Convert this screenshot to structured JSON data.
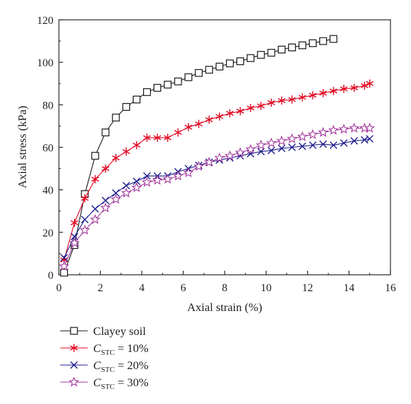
{
  "chart_data": {
    "type": "line",
    "xlabel": "Axial strain (%)",
    "ylabel": "Axial stress (kPa)",
    "xlim": [
      0,
      16
    ],
    "ylim": [
      0,
      120
    ],
    "xticks": [
      0,
      2,
      4,
      6,
      8,
      10,
      12,
      14,
      16
    ],
    "yticks": [
      0,
      20,
      40,
      60,
      80,
      100,
      120
    ],
    "grid": false,
    "legend_position": "below-left",
    "series": [
      {
        "name": "Clayey soil",
        "legend_main": "Clayey soil",
        "legend_sub": "",
        "legend_tail": "",
        "color": "#111111",
        "marker": "square",
        "x": [
          0.25,
          0.75,
          1.25,
          1.75,
          2.25,
          2.75,
          3.25,
          3.75,
          4.25,
          4.75,
          5.25,
          5.75,
          6.25,
          6.75,
          7.25,
          7.75,
          8.25,
          8.75,
          9.25,
          9.75,
          10.25,
          10.75,
          11.25,
          11.75,
          12.25,
          12.75,
          13.25
        ],
        "y": [
          1,
          14,
          38,
          56,
          67,
          74,
          79,
          82.5,
          86,
          88,
          89.5,
          91,
          93,
          95,
          96.5,
          98,
          99.5,
          100.5,
          102,
          103.5,
          104.5,
          106,
          107,
          108,
          109,
          110,
          111
        ]
      },
      {
        "name": "CSTC = 10%",
        "legend_main": "C",
        "legend_sub": "STC",
        "legend_tail": " = 10%",
        "color": "#e0001b",
        "marker": "asterisk",
        "x": [
          0.25,
          0.75,
          1.25,
          1.75,
          2.25,
          2.75,
          3.25,
          3.75,
          4.25,
          4.75,
          5.25,
          5.75,
          6.25,
          6.75,
          7.25,
          7.75,
          8.25,
          8.75,
          9.25,
          9.75,
          10.25,
          10.75,
          11.25,
          11.75,
          12.25,
          12.75,
          13.25,
          13.75,
          14.25,
          14.75,
          15.0
        ],
        "y": [
          7,
          24.5,
          36,
          45,
          50,
          55,
          58,
          61,
          64.5,
          64.5,
          64.5,
          67,
          69.5,
          71,
          73,
          74.5,
          76,
          77,
          78.5,
          79.5,
          81,
          82,
          82.5,
          83.5,
          84.5,
          85.5,
          86.5,
          87.5,
          88,
          89,
          90
        ]
      },
      {
        "name": "CSTC = 20%",
        "legend_main": "C",
        "legend_sub": "STC",
        "legend_tail": " = 20%",
        "color": "#1a1a8c",
        "marker": "x",
        "x": [
          0.25,
          0.75,
          1.25,
          1.75,
          2.25,
          2.75,
          3.25,
          3.75,
          4.25,
          4.75,
          5.25,
          5.75,
          6.25,
          6.75,
          7.25,
          7.75,
          8.25,
          8.75,
          9.25,
          9.75,
          10.25,
          10.75,
          11.25,
          11.75,
          12.25,
          12.75,
          13.25,
          13.75,
          14.25,
          14.75,
          15.0
        ],
        "y": [
          8,
          18,
          26,
          31,
          35,
          38.5,
          42,
          44,
          46.5,
          46.5,
          46.5,
          48.5,
          50,
          51.5,
          53,
          54,
          55,
          56,
          57,
          58,
          58.5,
          59.5,
          60,
          60.5,
          61,
          61.5,
          61,
          62,
          63,
          63.5,
          64
        ]
      },
      {
        "name": "CSTC = 30%",
        "legend_main": "C",
        "legend_sub": "STC",
        "legend_tail": " = 30%",
        "color": "#a0359a",
        "marker": "star",
        "x": [
          0.25,
          0.75,
          1.25,
          1.75,
          2.25,
          2.75,
          3.25,
          3.75,
          4.25,
          4.75,
          5.25,
          5.75,
          6.25,
          6.75,
          7.25,
          7.75,
          8.25,
          8.75,
          9.25,
          9.75,
          10.25,
          10.75,
          11.25,
          11.75,
          12.25,
          12.75,
          13.25,
          13.75,
          14.25,
          14.75,
          15.0
        ],
        "y": [
          4,
          15,
          21,
          26,
          31.5,
          35.5,
          38.5,
          41,
          43.5,
          44.5,
          45,
          46.5,
          48,
          51,
          53,
          55,
          56,
          57.5,
          59,
          61,
          62,
          63,
          64,
          65,
          66,
          67,
          68,
          68.5,
          69,
          69,
          69
        ]
      }
    ]
  }
}
